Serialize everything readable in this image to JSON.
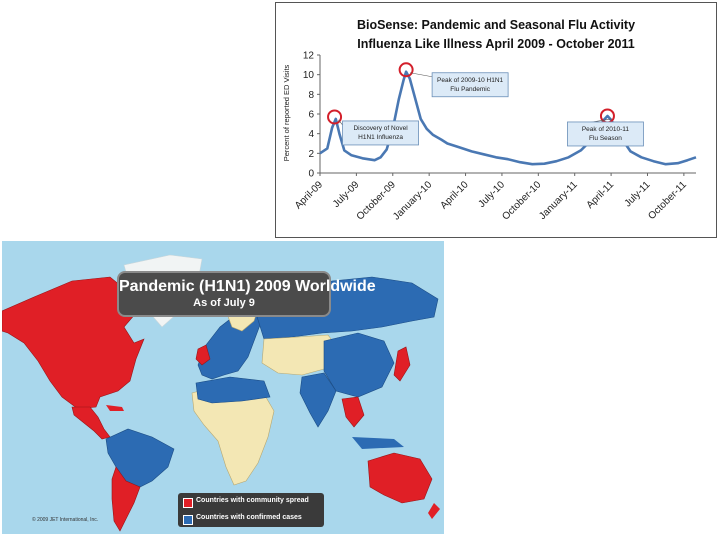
{
  "chart_data": {
    "type": "line",
    "title": "BioSense: Pandemic and Seasonal Flu Activity",
    "subtitle": "Influenza Like Illness April 2009 - October 2011",
    "ylabel": "Percent of reported ED Visits",
    "xlabel": "",
    "ylim": [
      0,
      12
    ],
    "yticks": [
      0,
      2,
      4,
      6,
      8,
      10,
      12
    ],
    "x_tick_labels": [
      "April-09",
      "July-09",
      "October-09",
      "January-10",
      "April-10",
      "July-10",
      "October-10",
      "January-11",
      "April-11",
      "July-11",
      "October-11"
    ],
    "x_range_months": [
      0,
      31
    ],
    "grid": false,
    "series": [
      {
        "name": "",
        "color": "#4a78b3",
        "points": [
          [
            0,
            2.0
          ],
          [
            0.6,
            2.5
          ],
          [
            1.0,
            4.6
          ],
          [
            1.3,
            5.5
          ],
          [
            1.6,
            4.0
          ],
          [
            2.0,
            2.3
          ],
          [
            2.6,
            1.8
          ],
          [
            3.5,
            1.5
          ],
          [
            4.5,
            1.3
          ],
          [
            5.0,
            1.6
          ],
          [
            5.5,
            2.4
          ],
          [
            6.0,
            4.5
          ],
          [
            6.5,
            7.5
          ],
          [
            6.9,
            9.5
          ],
          [
            7.1,
            10.3
          ],
          [
            7.4,
            9.6
          ],
          [
            7.8,
            7.8
          ],
          [
            8.3,
            5.5
          ],
          [
            8.8,
            4.5
          ],
          [
            9.3,
            3.9
          ],
          [
            10.0,
            3.4
          ],
          [
            10.5,
            3.0
          ],
          [
            11.5,
            2.6
          ],
          [
            12.5,
            2.2
          ],
          [
            13.5,
            1.9
          ],
          [
            14.5,
            1.6
          ],
          [
            15.5,
            1.4
          ],
          [
            16.5,
            1.1
          ],
          [
            17.5,
            0.9
          ],
          [
            18.5,
            0.95
          ],
          [
            19.5,
            1.2
          ],
          [
            20.5,
            1.6
          ],
          [
            21.5,
            2.3
          ],
          [
            22.0,
            2.9
          ],
          [
            22.6,
            3.7
          ],
          [
            23.0,
            4.5
          ],
          [
            23.4,
            5.4
          ],
          [
            23.7,
            5.8
          ],
          [
            24.0,
            5.4
          ],
          [
            24.4,
            4.6
          ],
          [
            25.0,
            3.3
          ],
          [
            25.6,
            2.2
          ],
          [
            26.5,
            1.6
          ],
          [
            27.5,
            1.2
          ],
          [
            28.5,
            0.9
          ],
          [
            29.5,
            1.0
          ],
          [
            30.3,
            1.3
          ],
          [
            31.0,
            1.6
          ]
        ]
      }
    ],
    "annotations": [
      {
        "text_lines": [
          "Discovery of Novel",
          "H1N1 Influenza"
        ],
        "x": 1.2,
        "y": 5.7
      },
      {
        "text_lines": [
          "Peak of 2009-10 H1N1",
          "Flu Pandemic"
        ],
        "x": 7.1,
        "y": 10.5
      },
      {
        "text_lines": [
          "Peak of 2010-11",
          "Flu Season"
        ],
        "x": 23.7,
        "y": 5.8
      }
    ]
  },
  "map": {
    "title": "Pandemic (H1N1) 2009 Worldwide",
    "subtitle": "As of July 9",
    "legend": [
      {
        "label": "Countries with community spread",
        "color": "#e01f26"
      },
      {
        "label": "Countries with confirmed cases",
        "color": "#2c6bb3"
      }
    ],
    "copyright": "© 2009 JET International, Inc.",
    "colors": {
      "ocean": "#a9d7ec",
      "no_cases": "#f3e7b4",
      "community": "#e01f26",
      "confirmed": "#2c6bb3",
      "ice": "#f1f4f4"
    }
  }
}
